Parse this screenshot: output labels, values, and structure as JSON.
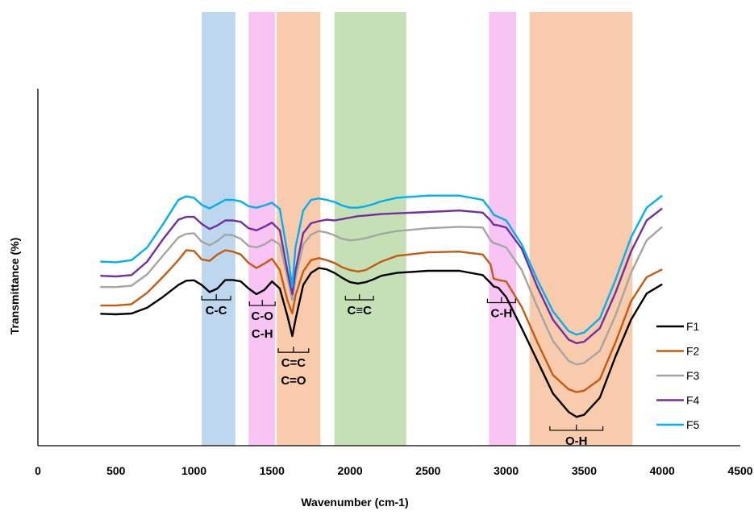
{
  "chart_data": {
    "type": "line",
    "title": "",
    "xlabel": "Wavenumber (cm-1)",
    "ylabel": "Transmittance (%)",
    "xlim": [
      0,
      4500
    ],
    "x_ticks": [
      0,
      500,
      1000,
      1500,
      2000,
      2500,
      3000,
      3500,
      4000,
      4500
    ],
    "y_ticks_shown": false,
    "grid": false,
    "legend_position": "bottom-right",
    "x": [
      400,
      500,
      600,
      700,
      800,
      900,
      950,
      1000,
      1050,
      1100,
      1150,
      1200,
      1250,
      1300,
      1350,
      1400,
      1450,
      1500,
      1550,
      1600,
      1630,
      1650,
      1700,
      1750,
      1800,
      1850,
      1900,
      1950,
      2000,
      2050,
      2100,
      2150,
      2200,
      2300,
      2500,
      2700,
      2850,
      2900,
      2920,
      2950,
      3000,
      3100,
      3200,
      3300,
      3400,
      3450,
      3500,
      3600,
      3700,
      3800,
      3900,
      4000
    ],
    "series": [
      {
        "name": "F1",
        "color": "#000000",
        "values": [
          0.72,
          0.68,
          0.74,
          1.15,
          1.9,
          2.75,
          3.05,
          3.08,
          2.75,
          2.25,
          2.5,
          3.1,
          3.1,
          3.0,
          2.5,
          2.1,
          2.4,
          3.0,
          2.5,
          0.5,
          -0.85,
          0.3,
          2.75,
          3.6,
          3.95,
          3.85,
          3.6,
          3.25,
          2.95,
          2.85,
          2.95,
          3.15,
          3.4,
          3.6,
          3.75,
          3.75,
          3.45,
          2.9,
          2.65,
          2.55,
          1.9,
          -0.3,
          -2.6,
          -4.9,
          -6.2,
          -6.55,
          -6.4,
          -5.2,
          -2.3,
          0.3,
          2.15,
          2.8
        ]
      },
      {
        "name": "F2",
        "color": "#c55a11",
        "values": [
          1.3,
          1.3,
          1.4,
          2.2,
          3.3,
          4.5,
          5.2,
          5.15,
          4.55,
          4.45,
          4.9,
          5.2,
          5.1,
          4.9,
          4.3,
          3.95,
          4.25,
          4.6,
          3.8,
          1.6,
          0.75,
          2.0,
          3.7,
          4.5,
          4.65,
          4.5,
          4.3,
          4.0,
          3.8,
          3.7,
          3.8,
          4.1,
          4.4,
          4.8,
          5.05,
          5.1,
          4.9,
          4.2,
          3.2,
          3.1,
          3.0,
          1.2,
          -1.3,
          -3.6,
          -4.6,
          -4.8,
          -4.7,
          -3.9,
          -1.3,
          1.6,
          3.3,
          3.85
        ]
      },
      {
        "name": "F3",
        "color": "#a5a5a5",
        "values": [
          2.6,
          2.6,
          2.7,
          3.5,
          4.8,
          6.1,
          6.35,
          6.4,
          5.8,
          5.55,
          5.85,
          6.3,
          6.25,
          6.0,
          5.5,
          5.4,
          5.6,
          5.95,
          5.6,
          3.2,
          1.7,
          3.2,
          5.6,
          6.3,
          6.55,
          6.45,
          6.25,
          6.0,
          5.9,
          5.95,
          6.05,
          6.2,
          6.35,
          6.55,
          6.75,
          6.85,
          6.8,
          5.9,
          5.7,
          5.6,
          5.4,
          3.8,
          1.2,
          -1.2,
          -2.6,
          -2.85,
          -2.75,
          -1.9,
          0.6,
          3.6,
          5.9,
          6.85
        ]
      },
      {
        "name": "F4",
        "color": "#7030a0",
        "values": [
          3.4,
          3.35,
          3.45,
          4.4,
          5.95,
          7.35,
          7.55,
          7.55,
          7.05,
          6.7,
          6.95,
          7.3,
          7.3,
          7.2,
          6.75,
          6.6,
          6.85,
          7.15,
          6.6,
          3.65,
          2.1,
          3.75,
          6.4,
          7.1,
          7.25,
          7.35,
          7.3,
          7.4,
          7.5,
          7.6,
          7.65,
          7.7,
          7.75,
          7.8,
          7.9,
          8.0,
          7.85,
          7.3,
          7.0,
          6.95,
          6.8,
          5.3,
          2.6,
          0.3,
          -1.1,
          -1.35,
          -1.25,
          -0.3,
          2.2,
          5.1,
          7.3,
          8.15
        ]
      },
      {
        "name": "F5",
        "color": "#00b0f0",
        "values": [
          4.4,
          4.35,
          4.5,
          5.4,
          7.0,
          8.75,
          9.0,
          8.9,
          8.4,
          8.15,
          8.45,
          8.75,
          8.75,
          8.65,
          8.3,
          8.2,
          8.35,
          8.55,
          8.1,
          4.9,
          2.6,
          5.4,
          8.0,
          8.75,
          8.85,
          8.75,
          8.6,
          8.35,
          8.2,
          8.2,
          8.3,
          8.45,
          8.65,
          8.9,
          9.05,
          9.05,
          8.75,
          8.05,
          7.7,
          7.55,
          7.3,
          5.6,
          3.1,
          0.9,
          -0.5,
          -0.75,
          -0.6,
          0.4,
          3.1,
          6.1,
          8.2,
          9.05
        ]
      }
    ],
    "bands": [
      {
        "from": 1050,
        "to": 1265,
        "color": "#bdd7ee"
      },
      {
        "from": 1350,
        "to": 1520,
        "color": "#f7c4f3"
      },
      {
        "from": 1530,
        "to": 1810,
        "color": "#f8cbad"
      },
      {
        "from": 1900,
        "to": 2360,
        "color": "#c5e0b4"
      },
      {
        "from": 2890,
        "to": 3065,
        "color": "#f7c4f3"
      },
      {
        "from": 3150,
        "to": 3810,
        "color": "#f8cbad"
      }
    ],
    "annotations": [
      {
        "text": "C-C",
        "from": 1050,
        "to": 1235,
        "level": 2.5
      },
      {
        "text": "C-O",
        "from": 1355,
        "to": 1520,
        "level": 2.1
      },
      {
        "text": "C-H",
        "from": 1355,
        "to": 1520,
        "level": 2.1,
        "line2": true
      },
      {
        "text": "C=C",
        "from": 1540,
        "to": 1735,
        "level": -1.2
      },
      {
        "text": "C=O",
        "from": 1540,
        "to": 1735,
        "level": -1.2,
        "line2": true
      },
      {
        "text": "C≡C",
        "from": 1970,
        "to": 2150,
        "level": 2.5
      },
      {
        "text": "C-H",
        "from": 2880,
        "to": 3060,
        "level": 2.3
      },
      {
        "text": "O-H",
        "from": 3280,
        "to": 3620,
        "level": -6.7
      }
    ]
  }
}
